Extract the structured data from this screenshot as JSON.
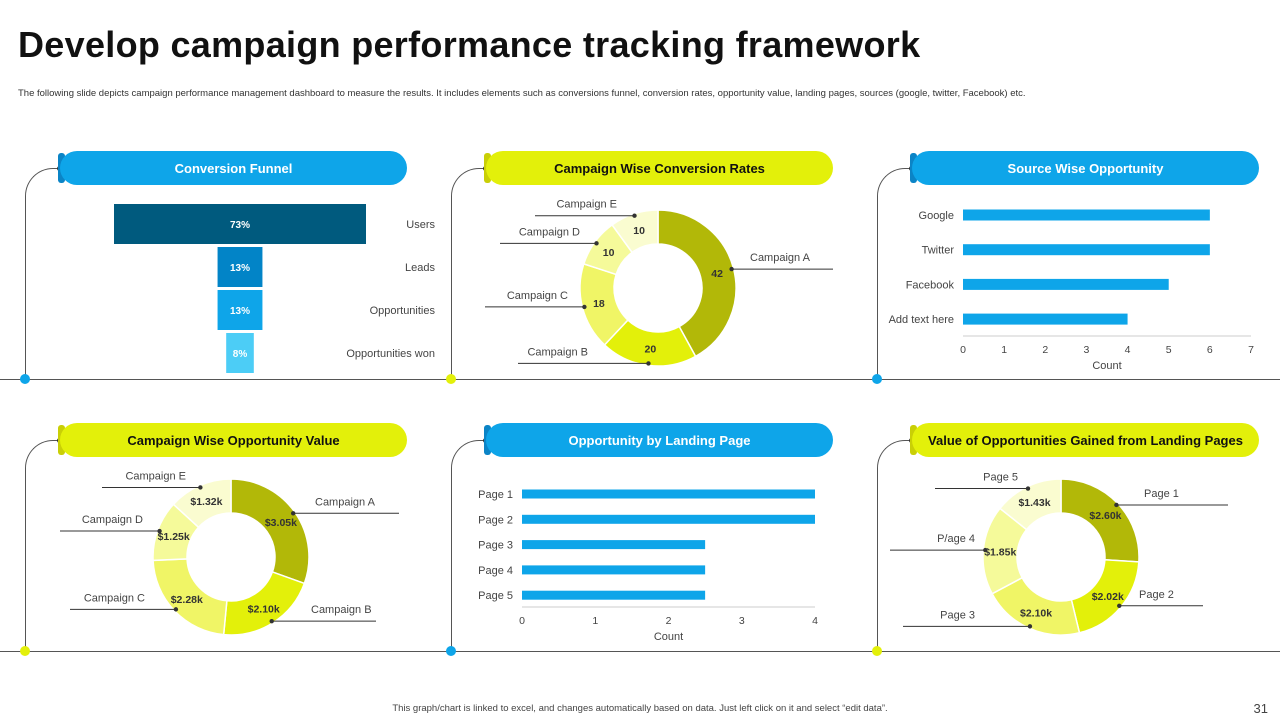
{
  "title": "Develop campaign performance tracking framework",
  "subtitle": "The following slide depicts campaign performance management dashboard to measure the results. It includes elements such as conversions funnel, conversion rates, opportunity value, landing pages, sources (google, twitter, Facebook) etc.",
  "footer_note": "This graph/chart is linked to excel, and changes automatically based on data. Just left click on it and select “edit data”.",
  "page_number": "31",
  "colors": {
    "blue": "#0ea5e9",
    "dark_blue": "#005a7e",
    "mid_blue": "#0284c7",
    "light_blue": "#4ccdf6",
    "yellow": "#e3f00a",
    "olive": "#b2b808",
    "pale_yellow": "#f5fa9a"
  },
  "panels": {
    "funnel": {
      "title": "Conversion Funnel"
    },
    "conv_rates": {
      "title": "Campaign Wise Conversion Rates"
    },
    "source": {
      "title": "Source Wise Opportunity"
    },
    "opp_value": {
      "title": "Campaign Wise Opportunity Value"
    },
    "landing": {
      "title": "Opportunity by Landing Page"
    },
    "landing_value": {
      "title": "Value of Opportunities Gained from Landing Pages"
    }
  },
  "chart_data": [
    {
      "id": "funnel",
      "type": "bar",
      "title": "Conversion Funnel",
      "categories": [
        "Users",
        "Leads",
        "Opportunities",
        "Opportunities won"
      ],
      "values": [
        73,
        13,
        13,
        8
      ],
      "labels": [
        "73%",
        "13%",
        "13%",
        "8%"
      ],
      "colors": [
        "#005a7e",
        "#0284c7",
        "#0ea5e9",
        "#4ccdf6"
      ]
    },
    {
      "id": "conv_rates",
      "type": "pie",
      "title": "Campaign Wise Conversion Rates",
      "categories": [
        "Campaign A",
        "Campaign B",
        "Campaign C",
        "Campaign D",
        "Campaign E"
      ],
      "values": [
        42,
        20,
        18,
        10,
        10
      ],
      "labels": [
        "42",
        "20",
        "18",
        "10",
        "10"
      ],
      "colors": [
        "#b2b808",
        "#e3f00a",
        "#f0f566",
        "#f5fa9a",
        "#fafcd0"
      ]
    },
    {
      "id": "source",
      "type": "bar",
      "title": "Source Wise Opportunity",
      "categories": [
        "Google",
        "Twitter",
        "Facebook",
        "Add text here"
      ],
      "values": [
        6,
        6,
        5,
        4
      ],
      "xlabel": "Count",
      "xlim": [
        0,
        7
      ],
      "ticks": [
        "0",
        "1",
        "2",
        "3",
        "4",
        "5",
        "6",
        "7"
      ]
    },
    {
      "id": "opp_value",
      "type": "pie",
      "title": "Campaign Wise Opportunity Value",
      "categories": [
        "Campaign A",
        "Campaign B",
        "Campaign C",
        "Campaign D",
        "Campaign E"
      ],
      "values": [
        3.05,
        2.1,
        2.28,
        1.25,
        1.32
      ],
      "labels": [
        "$3.05k",
        "$2.10k",
        "$2.28k",
        "$1.25k",
        "$1.32k"
      ],
      "colors": [
        "#b2b808",
        "#e3f00a",
        "#f0f566",
        "#f5fa9a",
        "#fafcd0"
      ]
    },
    {
      "id": "landing",
      "type": "bar",
      "title": "Opportunity by Landing Page",
      "categories": [
        "Page 1",
        "Page 2",
        "Page 3",
        "Page 4",
        "Page 5"
      ],
      "values": [
        4,
        4,
        2.5,
        2.5,
        2.5
      ],
      "xlabel": "Count",
      "xlim": [
        0,
        4
      ],
      "ticks": [
        "0",
        "1",
        "2",
        "3",
        "4"
      ]
    },
    {
      "id": "landing_value",
      "type": "pie",
      "title": "Value of Opportunities Gained from Landing Pages",
      "categories": [
        "Page 1",
        "Page 2",
        "Page 3",
        "P/age 4",
        "Page 5"
      ],
      "values": [
        2.6,
        2.02,
        2.1,
        1.85,
        1.43
      ],
      "labels": [
        "$2.60k",
        "$2.02k",
        "$2.10k",
        "$1.85k",
        "$1.43k"
      ],
      "colors": [
        "#b2b808",
        "#e3f00a",
        "#f0f566",
        "#f5fa9a",
        "#fafcd0"
      ]
    }
  ]
}
